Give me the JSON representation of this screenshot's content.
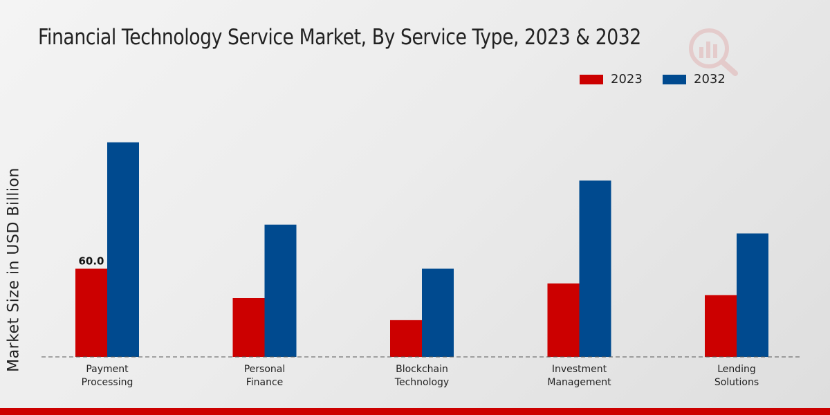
{
  "chart_data": {
    "type": "bar",
    "title": "Financial Technology Service Market, By Service Type, 2023 & 2032",
    "xlabel": "",
    "ylabel": "Market Size in USD Billion",
    "categories": [
      "Payment\nProcessing",
      "Personal\nFinance",
      "Blockchain\nTechnology",
      "Investment\nManagement",
      "Lending\nSolutions"
    ],
    "series": [
      {
        "name": "2023",
        "color": "#cc0000",
        "values": [
          60.0,
          40.0,
          25.0,
          50.0,
          42.0
        ]
      },
      {
        "name": "2032",
        "color": "#004a8f",
        "values": [
          146.0,
          90.0,
          60.0,
          120.0,
          84.0
        ]
      }
    ],
    "data_labels": [
      {
        "series": 0,
        "index": 0,
        "text": "60.0"
      }
    ],
    "ylim": [
      0,
      240
    ],
    "grid": false,
    "legend_position": "top-right"
  }
}
